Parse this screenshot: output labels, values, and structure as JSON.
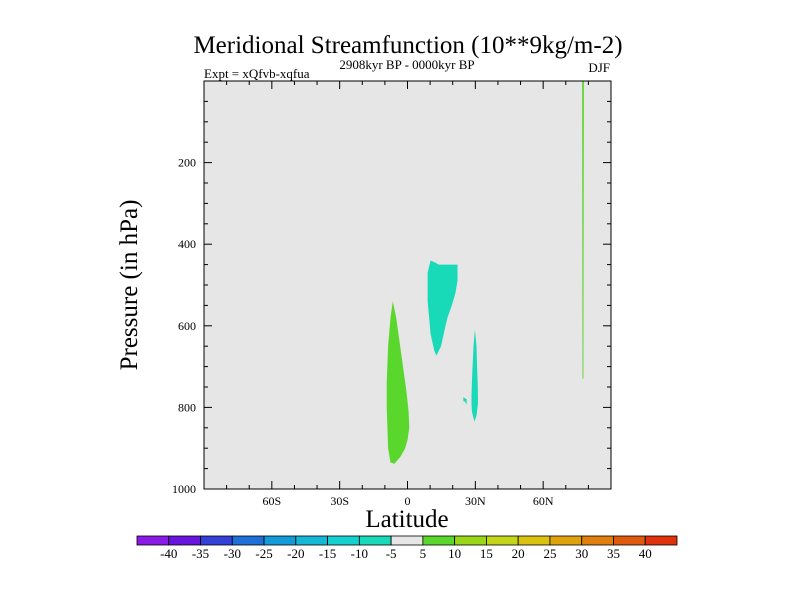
{
  "chart_data": {
    "type": "contour",
    "title": "Meridional Streamfunction (10**9kg/m-2)",
    "subtitle_left": "Expt = xQfvb-xqfua",
    "subtitle_center": "2908kyr BP - 0000kyr BP",
    "subtitle_right": "DJF",
    "xlabel": "Latitude",
    "ylabel": "Pressure (in hPa)",
    "xlim": [
      -90,
      90
    ],
    "ylim": [
      1000,
      0
    ],
    "x_ticks": [
      {
        "value": -60,
        "label": "60S"
      },
      {
        "value": -30,
        "label": "30S"
      },
      {
        "value": 0,
        "label": "0"
      },
      {
        "value": 30,
        "label": "30N"
      },
      {
        "value": 60,
        "label": "60N"
      }
    ],
    "x_minor_step": 10,
    "y_ticks": [
      {
        "value": 200,
        "label": "200"
      },
      {
        "value": 400,
        "label": "400"
      },
      {
        "value": 600,
        "label": "600"
      },
      {
        "value": 800,
        "label": "800"
      },
      {
        "value": 1000,
        "label": "1000"
      }
    ],
    "y_minor_step": 50,
    "background_color": "#e6e6e6",
    "regions": [
      {
        "name": "equatorial-positive",
        "level": "5 to 10",
        "color": "#5ad72c",
        "points": [
          [
            -6.5,
            540
          ],
          [
            -5,
            580
          ],
          [
            -3.5,
            640
          ],
          [
            -2,
            700
          ],
          [
            -0.5,
            760
          ],
          [
            0.5,
            810
          ],
          [
            0.8,
            850
          ],
          [
            0,
            880
          ],
          [
            -1,
            900
          ],
          [
            -3,
            920
          ],
          [
            -5.8,
            938
          ],
          [
            -7.5,
            935
          ],
          [
            -8.6,
            900
          ],
          [
            -9.2,
            800
          ],
          [
            -9.2,
            740
          ],
          [
            -8.6,
            650
          ],
          [
            -7.5,
            580
          ]
        ]
      },
      {
        "name": "northern-negative-upper",
        "level": "-10 to -5",
        "color": "#18d9b8",
        "points": [
          [
            10.2,
            440
          ],
          [
            12.3,
            445
          ],
          [
            13.8,
            450
          ],
          [
            17.5,
            450
          ],
          [
            22.1,
            450
          ],
          [
            22.1,
            490
          ],
          [
            21.2,
            520
          ],
          [
            19.6,
            550
          ],
          [
            17.7,
            580
          ],
          [
            16.4,
            610
          ],
          [
            14.8,
            650
          ],
          [
            12.8,
            673
          ],
          [
            11.8,
            660
          ],
          [
            10.2,
            620
          ],
          [
            8.9,
            540
          ],
          [
            8.9,
            470
          ]
        ]
      },
      {
        "name": "northern-negative-lower",
        "level": "-10 to -5",
        "color": "#18d9b8",
        "points": [
          [
            29.8,
            610
          ],
          [
            30.5,
            650
          ],
          [
            30.8,
            700
          ],
          [
            31.1,
            750
          ],
          [
            31.2,
            790
          ],
          [
            30.5,
            820
          ],
          [
            29.6,
            835
          ],
          [
            28.5,
            810
          ],
          [
            28.3,
            790
          ],
          [
            28.3,
            770
          ],
          [
            28.6,
            720
          ],
          [
            29.2,
            650
          ]
        ]
      },
      {
        "name": "northern-negative-speck",
        "level": "-10 to -5",
        "color": "#18d9b8",
        "points": [
          [
            24.7,
            775
          ],
          [
            26.2,
            780
          ],
          [
            26.1,
            793
          ],
          [
            25.3,
            785
          ],
          [
            24.7,
            785
          ]
        ]
      },
      {
        "name": "high-latitude-positive-strip",
        "level": "5 to 10",
        "color": "#5ad72c",
        "points": [
          [
            77.2,
            0
          ],
          [
            78.0,
            0
          ],
          [
            77.9,
            400
          ],
          [
            77.8,
            730
          ],
          [
            77.4,
            730
          ],
          [
            77.3,
            400
          ]
        ]
      }
    ],
    "colorbar": {
      "colors": [
        "#8c1ae6",
        "#6914de",
        "#3341d9",
        "#1f6fd9",
        "#139bd9",
        "#14b8d6",
        "#14d0d0",
        "#18d9b8",
        "#e6e6e6",
        "#5ad72c",
        "#9ad618",
        "#c4d61a",
        "#dac20e",
        "#dfa20b",
        "#e07f0c",
        "#e05a0d",
        "#e0320c"
      ],
      "labels": [
        "-40",
        "-35",
        "-30",
        "-25",
        "-20",
        "-15",
        "-10",
        "-5",
        "5",
        "10",
        "15",
        "20",
        "25",
        "30",
        "35",
        "40"
      ]
    }
  }
}
